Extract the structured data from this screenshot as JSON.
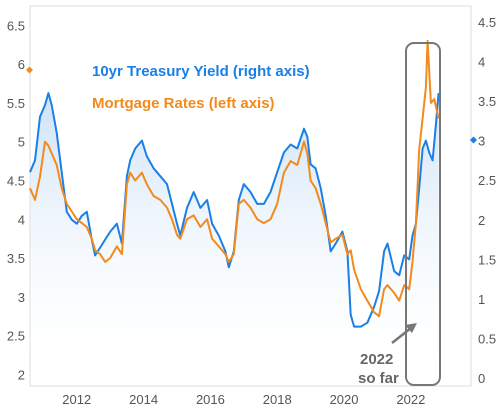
{
  "chart_data": {
    "type": "line",
    "x_range": [
      2010.6,
      2023.8
    ],
    "x_ticks": [
      2012,
      2014,
      2016,
      2018,
      2020,
      2022
    ],
    "left_axis": {
      "ylim": [
        1.85,
        6.75
      ],
      "ticks": [
        2,
        2.5,
        3,
        3.5,
        4,
        4.5,
        5,
        5.5,
        6,
        6.5
      ]
    },
    "right_axis": {
      "ylim": [
        -0.1,
        4.7
      ],
      "ticks": [
        0,
        0.5,
        1,
        1.5,
        2,
        2.5,
        3,
        3.5,
        4,
        4.5
      ]
    },
    "series": [
      {
        "name": "10yr Treasury Yield (right axis)",
        "axis": "right",
        "color": "#1a7fe6",
        "points": [
          [
            2010.6,
            2.6
          ],
          [
            2010.75,
            2.75
          ],
          [
            2010.9,
            3.3
          ],
          [
            2011.05,
            3.45
          ],
          [
            2011.15,
            3.6
          ],
          [
            2011.25,
            3.45
          ],
          [
            2011.4,
            3.1
          ],
          [
            2011.55,
            2.6
          ],
          [
            2011.7,
            2.1
          ],
          [
            2011.85,
            2.0
          ],
          [
            2012.0,
            1.95
          ],
          [
            2012.15,
            2.05
          ],
          [
            2012.3,
            2.1
          ],
          [
            2012.45,
            1.75
          ],
          [
            2012.55,
            1.55
          ],
          [
            2012.7,
            1.65
          ],
          [
            2012.85,
            1.75
          ],
          [
            2013.0,
            1.85
          ],
          [
            2013.2,
            1.95
          ],
          [
            2013.35,
            1.7
          ],
          [
            2013.5,
            2.55
          ],
          [
            2013.6,
            2.75
          ],
          [
            2013.75,
            2.9
          ],
          [
            2013.95,
            3.0
          ],
          [
            2014.1,
            2.8
          ],
          [
            2014.3,
            2.65
          ],
          [
            2014.5,
            2.55
          ],
          [
            2014.7,
            2.45
          ],
          [
            2014.85,
            2.2
          ],
          [
            2015.0,
            1.95
          ],
          [
            2015.1,
            1.8
          ],
          [
            2015.3,
            2.15
          ],
          [
            2015.5,
            2.35
          ],
          [
            2015.7,
            2.15
          ],
          [
            2015.9,
            2.25
          ],
          [
            2016.05,
            1.95
          ],
          [
            2016.25,
            1.8
          ],
          [
            2016.45,
            1.6
          ],
          [
            2016.55,
            1.4
          ],
          [
            2016.7,
            1.6
          ],
          [
            2016.85,
            2.25
          ],
          [
            2017.0,
            2.45
          ],
          [
            2017.2,
            2.35
          ],
          [
            2017.4,
            2.2
          ],
          [
            2017.6,
            2.2
          ],
          [
            2017.8,
            2.35
          ],
          [
            2018.0,
            2.6
          ],
          [
            2018.2,
            2.85
          ],
          [
            2018.4,
            2.95
          ],
          [
            2018.6,
            2.9
          ],
          [
            2018.8,
            3.15
          ],
          [
            2018.9,
            3.05
          ],
          [
            2019.0,
            2.7
          ],
          [
            2019.15,
            2.65
          ],
          [
            2019.3,
            2.4
          ],
          [
            2019.45,
            2.05
          ],
          [
            2019.6,
            1.6
          ],
          [
            2019.75,
            1.7
          ],
          [
            2019.95,
            1.85
          ],
          [
            2020.1,
            1.6
          ],
          [
            2020.2,
            0.8
          ],
          [
            2020.3,
            0.65
          ],
          [
            2020.5,
            0.65
          ],
          [
            2020.7,
            0.7
          ],
          [
            2020.9,
            0.9
          ],
          [
            2021.05,
            1.1
          ],
          [
            2021.2,
            1.6
          ],
          [
            2021.3,
            1.7
          ],
          [
            2021.5,
            1.35
          ],
          [
            2021.65,
            1.3
          ],
          [
            2021.8,
            1.55
          ],
          [
            2021.95,
            1.5
          ],
          [
            2022.05,
            1.8
          ],
          [
            2022.15,
            1.95
          ],
          [
            2022.25,
            2.4
          ],
          [
            2022.35,
            2.9
          ],
          [
            2022.45,
            3.0
          ],
          [
            2022.55,
            2.85
          ],
          [
            2022.65,
            2.75
          ],
          [
            2022.75,
            3.2
          ],
          [
            2022.83,
            3.6
          ]
        ]
      },
      {
        "name": "Mortgage Rates (left axis)",
        "axis": "left",
        "color": "#f28a1c",
        "points": [
          [
            2010.6,
            4.4
          ],
          [
            2010.75,
            4.25
          ],
          [
            2010.9,
            4.55
          ],
          [
            2011.05,
            5.0
          ],
          [
            2011.15,
            4.95
          ],
          [
            2011.25,
            4.85
          ],
          [
            2011.4,
            4.7
          ],
          [
            2011.55,
            4.4
          ],
          [
            2011.7,
            4.2
          ],
          [
            2011.85,
            4.1
          ],
          [
            2012.0,
            4.0
          ],
          [
            2012.15,
            3.95
          ],
          [
            2012.3,
            3.9
          ],
          [
            2012.45,
            3.75
          ],
          [
            2012.55,
            3.6
          ],
          [
            2012.7,
            3.55
          ],
          [
            2012.85,
            3.45
          ],
          [
            2013.0,
            3.5
          ],
          [
            2013.2,
            3.65
          ],
          [
            2013.35,
            3.55
          ],
          [
            2013.5,
            4.45
          ],
          [
            2013.6,
            4.6
          ],
          [
            2013.75,
            4.5
          ],
          [
            2013.95,
            4.6
          ],
          [
            2014.1,
            4.45
          ],
          [
            2014.3,
            4.3
          ],
          [
            2014.5,
            4.25
          ],
          [
            2014.7,
            4.15
          ],
          [
            2014.85,
            4.0
          ],
          [
            2015.0,
            3.8
          ],
          [
            2015.1,
            3.75
          ],
          [
            2015.3,
            4.0
          ],
          [
            2015.5,
            4.05
          ],
          [
            2015.7,
            3.9
          ],
          [
            2015.9,
            4.0
          ],
          [
            2016.05,
            3.75
          ],
          [
            2016.25,
            3.65
          ],
          [
            2016.45,
            3.55
          ],
          [
            2016.55,
            3.45
          ],
          [
            2016.7,
            3.55
          ],
          [
            2016.85,
            4.2
          ],
          [
            2017.0,
            4.25
          ],
          [
            2017.2,
            4.15
          ],
          [
            2017.4,
            4.0
          ],
          [
            2017.6,
            3.95
          ],
          [
            2017.8,
            4.0
          ],
          [
            2018.0,
            4.2
          ],
          [
            2018.2,
            4.6
          ],
          [
            2018.4,
            4.75
          ],
          [
            2018.6,
            4.7
          ],
          [
            2018.8,
            5.0
          ],
          [
            2018.9,
            4.85
          ],
          [
            2019.0,
            4.5
          ],
          [
            2019.15,
            4.4
          ],
          [
            2019.3,
            4.2
          ],
          [
            2019.45,
            3.95
          ],
          [
            2019.6,
            3.7
          ],
          [
            2019.75,
            3.75
          ],
          [
            2019.95,
            3.8
          ],
          [
            2020.1,
            3.55
          ],
          [
            2020.2,
            3.6
          ],
          [
            2020.3,
            3.35
          ],
          [
            2020.5,
            3.1
          ],
          [
            2020.7,
            2.95
          ],
          [
            2020.9,
            2.8
          ],
          [
            2021.05,
            2.75
          ],
          [
            2021.2,
            3.1
          ],
          [
            2021.3,
            3.15
          ],
          [
            2021.5,
            3.05
          ],
          [
            2021.65,
            2.95
          ],
          [
            2021.8,
            3.15
          ],
          [
            2021.95,
            3.1
          ],
          [
            2022.05,
            3.45
          ],
          [
            2022.15,
            3.95
          ],
          [
            2022.25,
            4.9
          ],
          [
            2022.35,
            5.3
          ],
          [
            2022.45,
            5.7
          ],
          [
            2022.5,
            6.3
          ],
          [
            2022.6,
            5.5
          ],
          [
            2022.7,
            5.55
          ],
          [
            2022.83,
            5.3
          ]
        ]
      }
    ],
    "annotation": {
      "line1": "2022",
      "line2": "so far"
    },
    "legend_placement": "top-left",
    "grid": false
  }
}
